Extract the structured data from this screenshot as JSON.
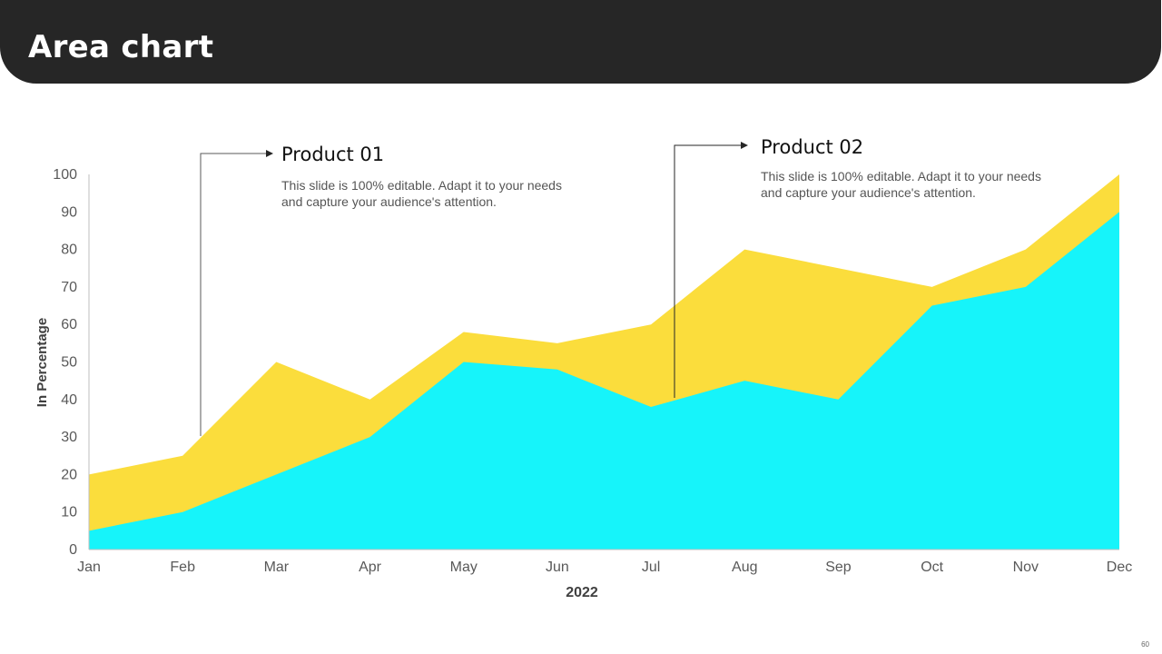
{
  "slide": {
    "title": "Area chart",
    "page_number": "60"
  },
  "callouts": [
    {
      "title": "Product 01",
      "body": "This slide is 100% editable. Adapt it to your needs and capture your audience's attention."
    },
    {
      "title": "Product 02",
      "body": "This slide is 100% editable. Adapt it to your needs and capture your audience's attention."
    }
  ],
  "chart_data": {
    "type": "area",
    "stacked": false,
    "title": "",
    "xlabel": "2022",
    "ylabel": "In Percentage",
    "ylim": [
      0,
      100
    ],
    "yticks": [
      0,
      10,
      20,
      30,
      40,
      50,
      60,
      70,
      80,
      90,
      100
    ],
    "grid": false,
    "categories": [
      "Jan",
      "Feb",
      "Mar",
      "Apr",
      "May",
      "Jun",
      "Jul",
      "Aug",
      "Sep",
      "Oct",
      "Nov",
      "Dec"
    ],
    "series": [
      {
        "name": "Product 01",
        "color": "#FBDD3C",
        "values": [
          20,
          25,
          50,
          40,
          58,
          55,
          60,
          80,
          75,
          70,
          80,
          100
        ]
      },
      {
        "name": "Product 02",
        "color": "#16F4FA",
        "values": [
          5,
          10,
          20,
          30,
          50,
          48,
          38,
          45,
          40,
          65,
          70,
          90
        ]
      }
    ]
  },
  "colors": {
    "header_bg": "#262626",
    "axis": "#BFBFBF",
    "tick_text": "#595959",
    "label_text": "#404040"
  }
}
